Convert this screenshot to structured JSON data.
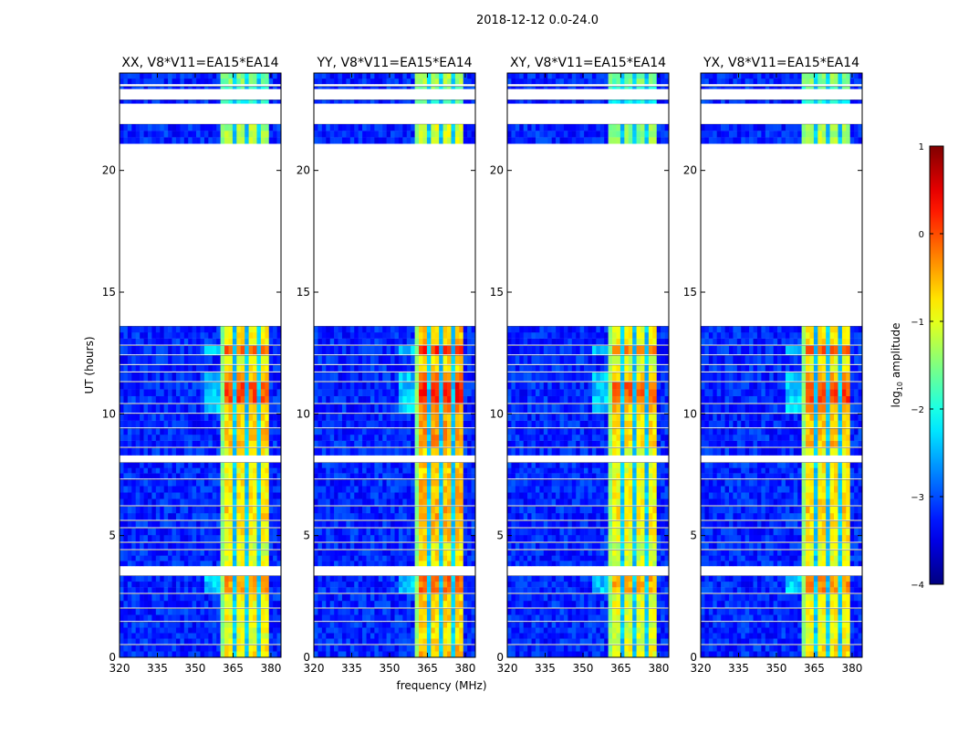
{
  "chart_data": {
    "type": "heatmap",
    "title": "2018-12-12 0.0-24.0",
    "xlabel": "frequency (MHz)",
    "ylabel": "UT (hours)",
    "xlim": [
      320,
      384
    ],
    "ylim": [
      0,
      24
    ],
    "xticks": [
      320,
      335,
      350,
      365,
      380
    ],
    "yticks": [
      0,
      5,
      10,
      15,
      20
    ],
    "panels": [
      {
        "title": "XX, V8*V11=EA15*EA14",
        "rfi_offset": 0.0
      },
      {
        "title": "YY, V8*V11=EA15*EA14",
        "rfi_offset": 0.25
      },
      {
        "title": "XY, V8*V11=EA15*EA14",
        "rfi_offset": -0.1
      },
      {
        "title": "YX, V8*V11=EA15*EA14",
        "rfi_offset": 0.05
      }
    ],
    "colorbar": {
      "label": "log10 amplitude",
      "label_main": "log",
      "label_sub": "10",
      "label_rest": " amplitude",
      "range": [
        -4,
        1
      ],
      "ticks": [
        "1",
        "0",
        "−1",
        "−2",
        "−3",
        "−4"
      ],
      "tick_values": [
        1,
        0,
        -1,
        -2,
        -3,
        -4
      ],
      "colormap": "jet"
    },
    "background_level": -3.2,
    "rfi_band_mhz": [
      360.4,
      380
    ],
    "rfi_dark_channels_mhz": [
      365.5,
      370.3,
      375.3
    ],
    "time_segments_ut": [
      {
        "start": 0.0,
        "end": 0.5,
        "rfi": -0.8
      },
      {
        "start": 0.55,
        "end": 1.45,
        "rfi": -1.0
      },
      {
        "start": 1.5,
        "end": 2.0,
        "rfi": -0.9
      },
      {
        "start": 2.05,
        "end": 2.6,
        "rfi": -0.9
      },
      {
        "start": 2.65,
        "end": 3.35,
        "rfi": -0.4
      },
      {
        "start": 3.75,
        "end": 4.4,
        "rfi": -1.0
      },
      {
        "start": 4.45,
        "end": 4.7,
        "rfi": -1.1
      },
      {
        "start": 4.75,
        "end": 5.3,
        "rfi": -0.8
      },
      {
        "start": 5.35,
        "end": 5.6,
        "rfi": -0.8
      },
      {
        "start": 5.65,
        "end": 6.2,
        "rfi": -0.7
      },
      {
        "start": 6.25,
        "end": 7.3,
        "rfi": -0.8
      },
      {
        "start": 7.35,
        "end": 8.0,
        "rfi": -0.9
      },
      {
        "start": 8.3,
        "end": 8.6,
        "rfi": -0.9
      },
      {
        "start": 8.65,
        "end": 9.4,
        "rfi": -0.6
      },
      {
        "start": 9.45,
        "end": 10.0,
        "rfi": -0.7
      },
      {
        "start": 10.05,
        "end": 10.4,
        "rfi": -0.5
      },
      {
        "start": 10.45,
        "end": 11.3,
        "rfi": 0.0
      },
      {
        "start": 11.35,
        "end": 11.7,
        "rfi": -0.5
      },
      {
        "start": 11.75,
        "end": 12.0,
        "rfi": -0.9
      },
      {
        "start": 12.05,
        "end": 12.4,
        "rfi": -1.0
      },
      {
        "start": 12.45,
        "end": 12.8,
        "rfi": -0.1
      },
      {
        "start": 12.85,
        "end": 13.6,
        "rfi": -0.8
      },
      {
        "start": 21.1,
        "end": 21.9,
        "rfi": -1.3
      },
      {
        "start": 22.75,
        "end": 22.9,
        "rfi": -2.0
      },
      {
        "start": 23.35,
        "end": 23.45,
        "rfi": -1.8
      },
      {
        "start": 23.55,
        "end": 24.0,
        "rfi": -1.5
      }
    ]
  }
}
